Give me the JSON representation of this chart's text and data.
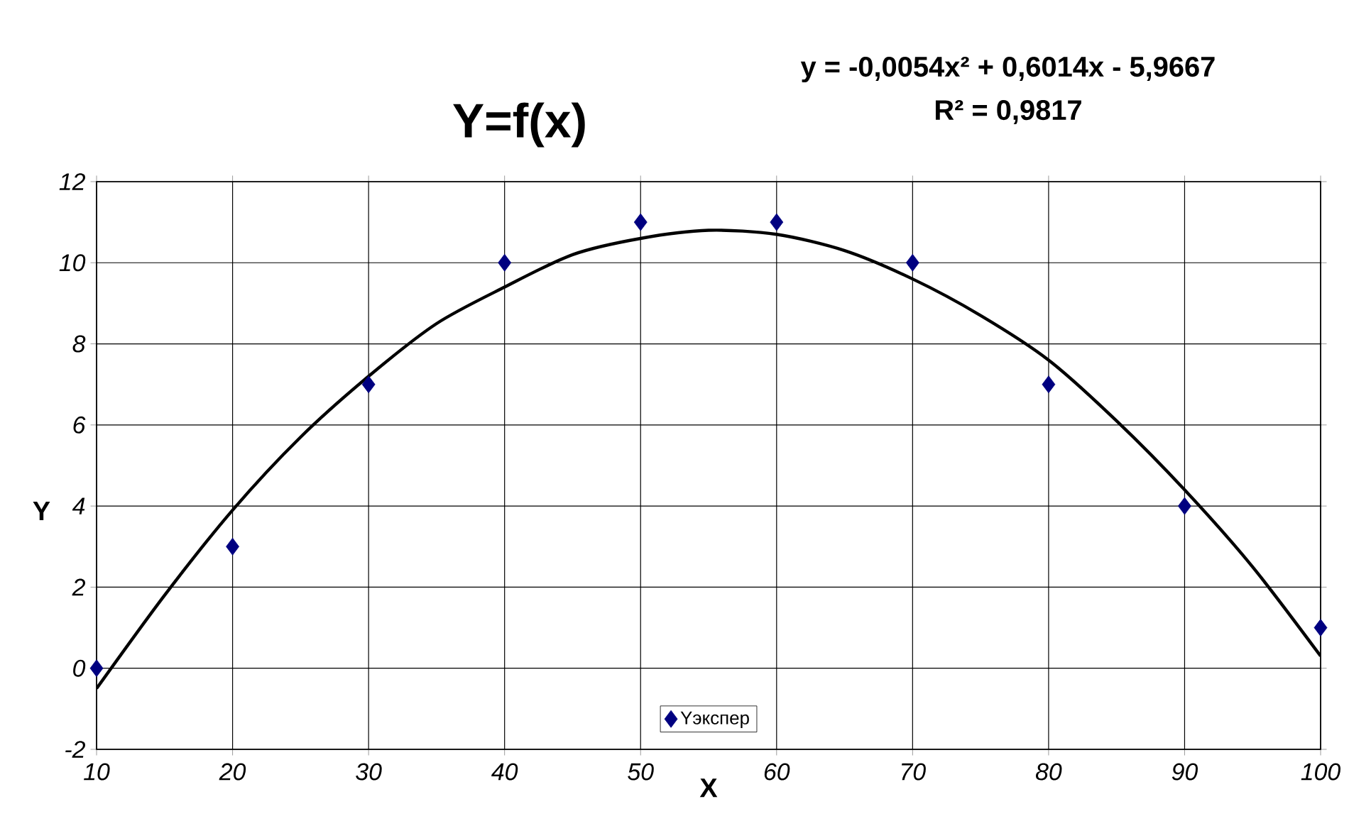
{
  "chart_data": {
    "type": "scatter",
    "title": "Y=f(x)",
    "xlabel": "X",
    "ylabel": "Y",
    "annotations": [
      "y = -0,0054x² + 0,6014x - 5,9667",
      "R² = 0,9817"
    ],
    "x": [
      10,
      20,
      30,
      40,
      50,
      60,
      70,
      80,
      90,
      100
    ],
    "series": [
      {
        "name": "Yэкспер",
        "color": "#000080",
        "marker": "diamond",
        "values": [
          0,
          3,
          7,
          10,
          11,
          11,
          10,
          7,
          4,
          1
        ]
      },
      {
        "type": "line",
        "color": "#000000",
        "marker": "none",
        "x": [
          10,
          15,
          20,
          25,
          30,
          35,
          40,
          45,
          50,
          55,
          60,
          65,
          70,
          75,
          80,
          85,
          90,
          95,
          100
        ],
        "values": [
          -0.5,
          1.8,
          3.9,
          5.7,
          7.2,
          8.5,
          9.4,
          10.2,
          10.6,
          10.8,
          10.7,
          10.3,
          9.6,
          8.7,
          7.6,
          6.1,
          4.4,
          2.5,
          0.3
        ]
      }
    ],
    "xlim": [
      10,
      100
    ],
    "ylim": [
      -2,
      12
    ],
    "xticks": [
      10,
      20,
      30,
      40,
      50,
      60,
      70,
      80,
      90,
      100
    ],
    "yticks": [
      -2,
      0,
      2,
      4,
      6,
      8,
      10,
      12
    ],
    "grid": true,
    "legend": "bottom"
  }
}
